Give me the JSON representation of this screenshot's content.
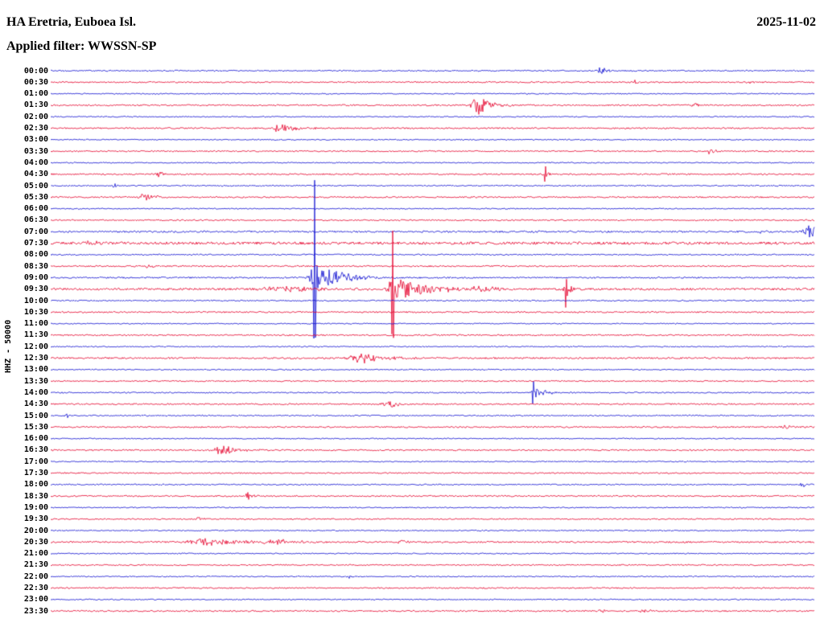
{
  "header": {
    "station_title": "HA Eretria, Euboea Isl.",
    "date": "2025-11-02",
    "filter_line": "Applied filter: WWSSN-SP"
  },
  "axis": {
    "ylabel": "HHZ - 50000"
  },
  "chart_data": {
    "type": "line",
    "subtype": "helicorder-seismogram",
    "title": "HA Eretria, Euboea Isl.",
    "date": "2025-11-02",
    "filter": "WWSSN-SP",
    "channel_scale": "HHZ - 50000",
    "rows_count": 48,
    "row_duration_minutes": 30,
    "grid": false,
    "legend": "none",
    "background": "#ffffff",
    "text_color": "#000000",
    "colors": {
      "blue": "#0f0fd0",
      "red": "#e4002c"
    },
    "rows": [
      {
        "label": "00:00",
        "color": "blue",
        "noise": 0.8,
        "events": [
          {
            "pos": 0.72,
            "amp": 5,
            "rise": 3,
            "decay": 10
          }
        ]
      },
      {
        "label": "00:30",
        "color": "red",
        "noise": 0.85,
        "events": [
          {
            "pos": 0.765,
            "amp": 2.5,
            "rise": 2,
            "decay": 6
          },
          {
            "pos": 0.91,
            "amp": 3,
            "rise": 2,
            "decay": 7
          }
        ]
      },
      {
        "label": "01:00",
        "color": "blue",
        "noise": 0.7,
        "events": []
      },
      {
        "label": "01:30",
        "color": "red",
        "noise": 0.9,
        "events": [
          {
            "pos": 0.558,
            "amp": 13,
            "rise": 4,
            "decay": 16,
            "spike": 16
          },
          {
            "pos": 0.843,
            "amp": 3.5,
            "rise": 2,
            "decay": 6
          }
        ]
      },
      {
        "label": "02:00",
        "color": "blue",
        "noise": 0.7,
        "events": []
      },
      {
        "label": "02:30",
        "color": "red",
        "noise": 0.9,
        "events": [
          {
            "pos": 0.3,
            "amp": 6,
            "rise": 5,
            "decay": 18
          }
        ]
      },
      {
        "label": "03:00",
        "color": "blue",
        "noise": 0.7,
        "events": []
      },
      {
        "label": "03:30",
        "color": "red",
        "noise": 0.85,
        "events": [
          {
            "pos": 0.862,
            "amp": 3.5,
            "rise": 3,
            "decay": 8
          }
        ]
      },
      {
        "label": "04:00",
        "color": "blue",
        "noise": 0.7,
        "events": []
      },
      {
        "label": "04:30",
        "color": "red",
        "noise": 0.9,
        "events": [
          {
            "pos": 0.142,
            "amp": 4.5,
            "rise": 2,
            "decay": 5
          },
          {
            "pos": 0.648,
            "amp": 6,
            "rise": 2,
            "decay": 4,
            "spike": 8
          }
        ]
      },
      {
        "label": "05:00",
        "color": "blue",
        "noise": 0.75,
        "events": [
          {
            "pos": 0.084,
            "amp": 3.5,
            "rise": 2,
            "decay": 5
          }
        ]
      },
      {
        "label": "05:30",
        "color": "red",
        "noise": 0.9,
        "events": [
          {
            "pos": 0.121,
            "amp": 4.5,
            "rise": 4,
            "decay": 15
          }
        ]
      },
      {
        "label": "06:00",
        "color": "blue",
        "noise": 0.7,
        "events": []
      },
      {
        "label": "06:30",
        "color": "red",
        "noise": 0.85,
        "events": []
      },
      {
        "label": "07:00",
        "color": "blue",
        "noise": 1.1,
        "events": [
          {
            "pos": 0.93,
            "amp": 2.5,
            "rise": 2,
            "decay": 5
          },
          {
            "pos": 0.995,
            "amp": 9,
            "rise": 5,
            "decay": 9
          }
        ]
      },
      {
        "label": "07:30",
        "color": "red",
        "noise": 1.6,
        "events": [
          {
            "pos": 0.05,
            "amp": 3,
            "rise": 4,
            "decay": 12
          }
        ]
      },
      {
        "label": "08:00",
        "color": "blue",
        "noise": 0.8,
        "events": []
      },
      {
        "label": "08:30",
        "color": "red",
        "noise": 0.9,
        "events": [
          {
            "pos": 0.128,
            "amp": 4,
            "rise": 2,
            "decay": 4
          }
        ]
      },
      {
        "label": "09:00",
        "color": "blue",
        "noise": 0.9,
        "events": [
          {
            "pos": 0.346,
            "amp": 18,
            "rise": 5,
            "decay": 22,
            "spike": 115
          },
          {
            "pos": 0.362,
            "amp": 7,
            "rise": 8,
            "decay": 32
          }
        ]
      },
      {
        "label": "09:30",
        "color": "red",
        "noise": 1.3,
        "events": [
          {
            "pos": 0.3,
            "amp": 3.5,
            "rise": 14,
            "decay": 55
          },
          {
            "pos": 0.448,
            "amp": 16,
            "rise": 4,
            "decay": 40,
            "spike": 85
          },
          {
            "pos": 0.565,
            "amp": 4.5,
            "rise": 6,
            "decay": 18
          },
          {
            "pos": 0.675,
            "amp": 9,
            "rise": 2,
            "decay": 7,
            "spike": 19
          }
        ]
      },
      {
        "label": "10:00",
        "color": "blue",
        "noise": 0.8,
        "events": []
      },
      {
        "label": "10:30",
        "color": "red",
        "noise": 0.9,
        "events": []
      },
      {
        "label": "11:00",
        "color": "blue",
        "noise": 0.7,
        "events": []
      },
      {
        "label": "11:30",
        "color": "red",
        "noise": 0.9,
        "events": []
      },
      {
        "label": "12:00",
        "color": "blue",
        "noise": 0.7,
        "events": []
      },
      {
        "label": "12:30",
        "color": "red",
        "noise": 1.0,
        "events": [
          {
            "pos": 0.41,
            "amp": 6,
            "rise": 12,
            "decay": 30
          }
        ]
      },
      {
        "label": "13:00",
        "color": "blue",
        "noise": 0.7,
        "events": []
      },
      {
        "label": "13:30",
        "color": "red",
        "noise": 0.8,
        "events": []
      },
      {
        "label": "14:00",
        "color": "blue",
        "noise": 0.8,
        "events": [
          {
            "pos": 0.632,
            "amp": 8,
            "rise": 3,
            "decay": 13,
            "spike": 10
          }
        ]
      },
      {
        "label": "14:30",
        "color": "red",
        "noise": 0.9,
        "events": [
          {
            "pos": 0.447,
            "amp": 4,
            "rise": 8,
            "decay": 10
          }
        ]
      },
      {
        "label": "15:00",
        "color": "blue",
        "noise": 0.8,
        "events": [
          {
            "pos": 0.021,
            "amp": 4,
            "rise": 2,
            "decay": 5
          }
        ]
      },
      {
        "label": "15:30",
        "color": "red",
        "noise": 0.9,
        "events": [
          {
            "pos": 0.959,
            "amp": 3.5,
            "rise": 2,
            "decay": 7
          }
        ]
      },
      {
        "label": "16:00",
        "color": "blue",
        "noise": 0.7,
        "events": []
      },
      {
        "label": "16:30",
        "color": "red",
        "noise": 0.9,
        "events": [
          {
            "pos": 0.225,
            "amp": 6,
            "rise": 7,
            "decay": 18
          }
        ]
      },
      {
        "label": "17:00",
        "color": "blue",
        "noise": 0.7,
        "events": []
      },
      {
        "label": "17:30",
        "color": "red",
        "noise": 0.8,
        "events": []
      },
      {
        "label": "18:00",
        "color": "blue",
        "noise": 0.8,
        "events": [
          {
            "pos": 0.985,
            "amp": 3,
            "rise": 2,
            "decay": 5
          }
        ]
      },
      {
        "label": "18:30",
        "color": "red",
        "noise": 0.9,
        "events": [
          {
            "pos": 0.258,
            "amp": 5,
            "rise": 2,
            "decay": 5,
            "spike": 6
          }
        ]
      },
      {
        "label": "19:00",
        "color": "blue",
        "noise": 0.7,
        "events": []
      },
      {
        "label": "19:30",
        "color": "red",
        "noise": 0.8,
        "events": [
          {
            "pos": 0.195,
            "amp": 4,
            "rise": 2,
            "decay": 4
          }
        ]
      },
      {
        "label": "20:00",
        "color": "blue",
        "noise": 0.7,
        "events": []
      },
      {
        "label": "20:30",
        "color": "red",
        "noise": 1.0,
        "events": [
          {
            "pos": 0.2,
            "amp": 4.5,
            "rise": 14,
            "decay": 45
          },
          {
            "pos": 0.3,
            "amp": 3,
            "rise": 15,
            "decay": 25
          },
          {
            "pos": 0.458,
            "amp": 5,
            "rise": 2,
            "decay": 5
          }
        ]
      },
      {
        "label": "21:00",
        "color": "blue",
        "noise": 0.7,
        "events": []
      },
      {
        "label": "21:30",
        "color": "red",
        "noise": 0.8,
        "events": []
      },
      {
        "label": "22:00",
        "color": "blue",
        "noise": 0.7,
        "events": [
          {
            "pos": 0.392,
            "amp": 3,
            "rise": 2,
            "decay": 4
          }
        ]
      },
      {
        "label": "22:30",
        "color": "red",
        "noise": 0.8,
        "events": []
      },
      {
        "label": "23:00",
        "color": "blue",
        "noise": 0.7,
        "events": []
      },
      {
        "label": "23:30",
        "color": "red",
        "noise": 0.9,
        "events": [
          {
            "pos": 0.72,
            "amp": 2.5,
            "rise": 2,
            "decay": 5
          },
          {
            "pos": 0.774,
            "amp": 3,
            "rise": 2,
            "decay": 7
          }
        ]
      }
    ]
  }
}
